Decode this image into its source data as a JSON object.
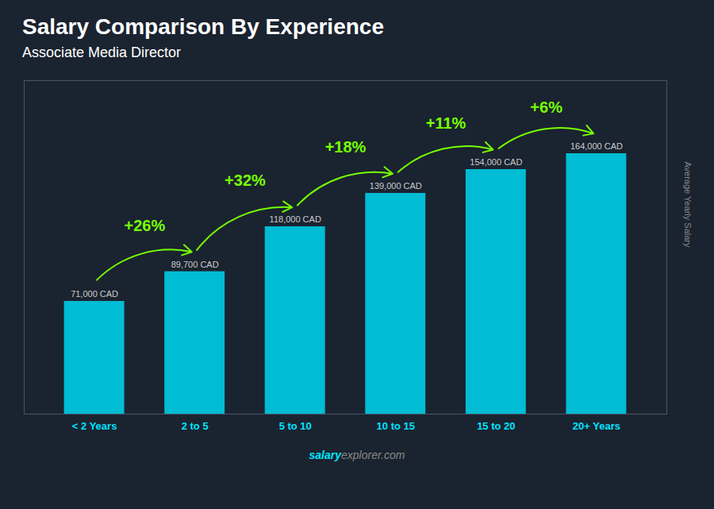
{
  "chart_data": {
    "type": "bar",
    "title": "Salary Comparison By Experience",
    "subtitle": "Associate Media Director",
    "ylabel": "Average Yearly Salary",
    "categories": [
      "< 2 Years",
      "2 to 5",
      "5 to 10",
      "10 to 15",
      "15 to 20",
      "20+ Years"
    ],
    "values": [
      71000,
      89700,
      118000,
      139000,
      154000,
      164000
    ],
    "value_labels": [
      "71,000 CAD",
      "89,700 CAD",
      "118,000 CAD",
      "139,000 CAD",
      "154,000 CAD",
      "164,000 CAD"
    ],
    "data_labels": true,
    "annotations": [
      "+26%",
      "+32%",
      "+18%",
      "+11%",
      "+6%"
    ],
    "color": "#00bcd4",
    "ylim": [
      0,
      210000
    ],
    "tick_labels": "x",
    "grid": false,
    "footer": [
      "salary",
      "explorer.com"
    ]
  }
}
